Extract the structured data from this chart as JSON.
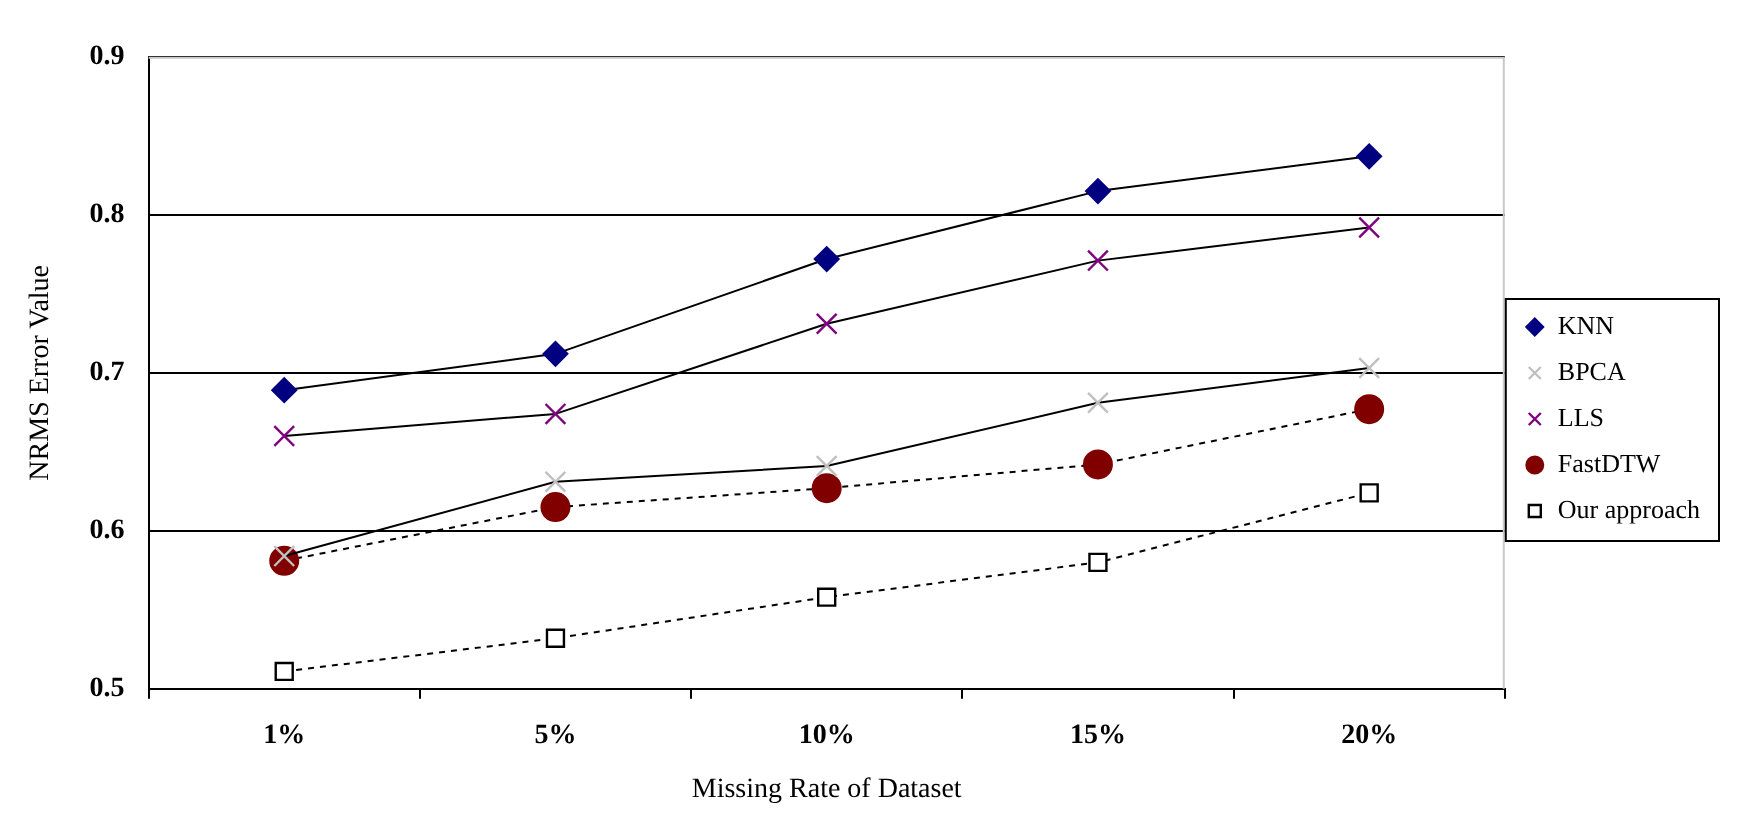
{
  "chart_data": {
    "type": "line",
    "xlabel": "Missing Rate of Dataset",
    "ylabel": "NRMS Error Value",
    "categories": [
      "1%",
      "5%",
      "10%",
      "15%",
      "20%"
    ],
    "ylim": [
      0.5,
      0.9
    ],
    "yticks": [
      0.5,
      0.6,
      0.7,
      0.8,
      0.9
    ],
    "grid": "y",
    "legend": "right",
    "series": [
      {
        "name": "KNN",
        "color": "#000080",
        "marker": "diamond",
        "line_style": "solid",
        "values": [
          0.689,
          0.712,
          0.772,
          0.815,
          0.837
        ]
      },
      {
        "name": "BPCA",
        "color": "#c0c0c0",
        "marker": "cross",
        "line_style": "solid",
        "values": [
          0.584,
          0.631,
          0.641,
          0.681,
          0.703
        ]
      },
      {
        "name": "LLS",
        "color": "#800080",
        "marker": "cross",
        "line_style": "solid",
        "values": [
          0.66,
          0.674,
          0.731,
          0.771,
          0.792
        ]
      },
      {
        "name": "FastDTW",
        "color": "#800000",
        "marker": "circle",
        "line_style": "dashed",
        "values": [
          0.581,
          0.615,
          0.627,
          0.642,
          0.677
        ]
      },
      {
        "name": "Our approach",
        "color": "#000000",
        "marker": "square",
        "line_style": "dashed",
        "values": [
          0.511,
          0.532,
          0.558,
          0.58,
          0.624
        ]
      }
    ]
  }
}
